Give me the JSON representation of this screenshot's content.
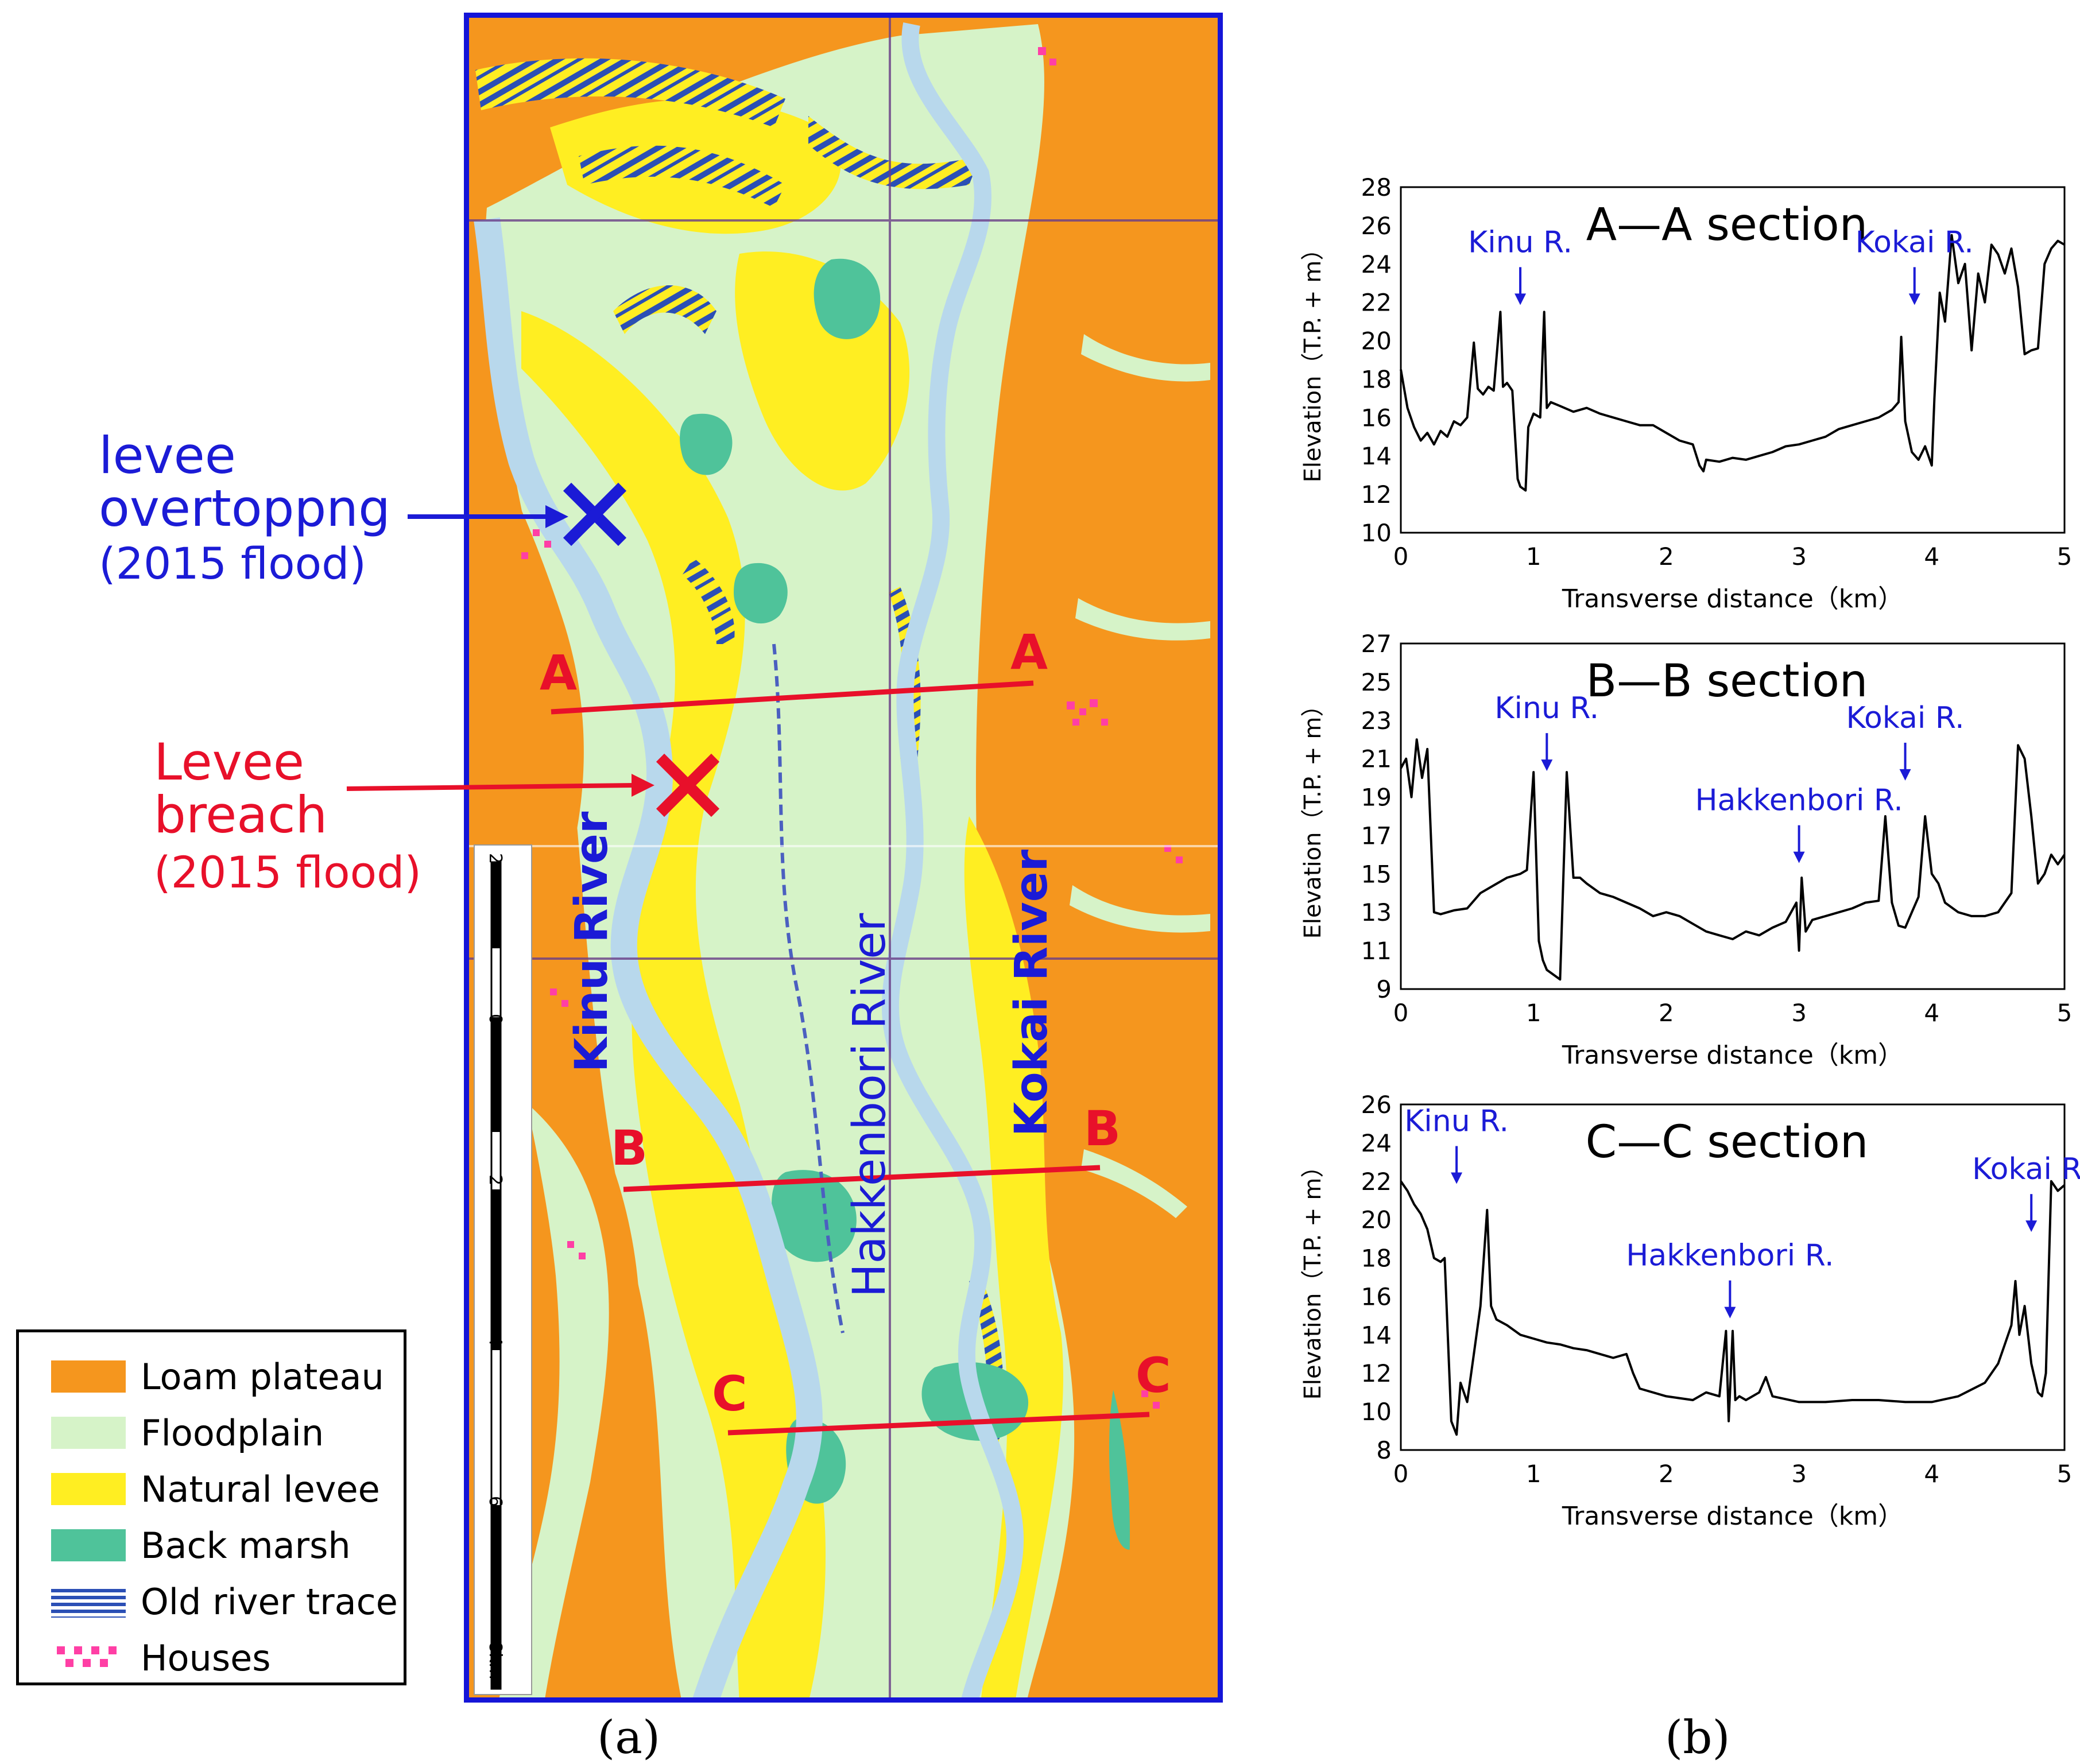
{
  "annotations": {
    "overtopping": [
      "levee",
      "overtoppng",
      "(2015 flood)"
    ],
    "breach": [
      "Levee",
      "breach",
      "(2015 flood)"
    ],
    "overtopping_color": "#1b1bd6",
    "breach_color": "#e8102a"
  },
  "map": {
    "rivers": {
      "kinu": "Kinu River",
      "hakkenbori": "Hakkenbori River",
      "kokai": "Kokai River"
    },
    "sections": {
      "a": "A",
      "b": "B",
      "c": "C"
    },
    "scale_ticks": [
      "2",
      "0",
      "2",
      "4",
      "6",
      "8km"
    ],
    "colors": {
      "loam": "#f5961e",
      "floodplain": "#d6f3c8",
      "levee": "#ffee22",
      "marsh": "#4fc39a",
      "river": "#b8d8ec",
      "houses": "#ff3fa5",
      "frame": "#1515d8"
    }
  },
  "legend": [
    {
      "label": "Loam plateau",
      "swatch": "loam"
    },
    {
      "label": "Floodplain",
      "swatch": "floodplain"
    },
    {
      "label": "Natural levee",
      "swatch": "levee"
    },
    {
      "label": "Back marsh",
      "swatch": "marsh"
    },
    {
      "label": "Old river trace",
      "swatch": "old-river"
    },
    {
      "label": "Houses",
      "swatch": "houses"
    }
  ],
  "panel_labels": {
    "a": "(a)",
    "b": "(b)"
  },
  "chart_data": [
    {
      "type": "line",
      "title": "A—A section",
      "xlabel": "Transverse distance（km）",
      "ylabel": "Elevation（T.P. + m）",
      "xlim": [
        0,
        5
      ],
      "ylim": [
        10,
        28
      ],
      "xticks": [
        0,
        1,
        2,
        3,
        4,
        5
      ],
      "yticks": [
        10,
        12,
        14,
        16,
        18,
        20,
        22,
        24,
        26,
        28
      ],
      "annotations": [
        {
          "text": "Kinu R.",
          "x": 0.9,
          "y": 21.5
        },
        {
          "text": "Kokai R.",
          "x": 3.87,
          "y": 21.5
        }
      ],
      "x": [
        0,
        0.05,
        0.1,
        0.15,
        0.2,
        0.25,
        0.3,
        0.35,
        0.4,
        0.45,
        0.5,
        0.55,
        0.58,
        0.62,
        0.66,
        0.7,
        0.75,
        0.77,
        0.8,
        0.84,
        0.88,
        0.9,
        0.94,
        0.96,
        1.0,
        1.05,
        1.08,
        1.1,
        1.13,
        1.2,
        1.3,
        1.4,
        1.5,
        1.6,
        1.7,
        1.8,
        1.9,
        2.0,
        2.1,
        2.2,
        2.25,
        2.28,
        2.3,
        2.4,
        2.5,
        2.6,
        2.7,
        2.8,
        2.9,
        3.0,
        3.1,
        3.2,
        3.3,
        3.4,
        3.5,
        3.6,
        3.7,
        3.75,
        3.77,
        3.8,
        3.85,
        3.9,
        3.95,
        4.0,
        4.02,
        4.06,
        4.1,
        4.15,
        4.2,
        4.25,
        4.3,
        4.35,
        4.4,
        4.45,
        4.5,
        4.55,
        4.6,
        4.65,
        4.7,
        4.75,
        4.8,
        4.85,
        4.9,
        4.95,
        5.0
      ],
      "y": [
        18.5,
        16.5,
        15.5,
        14.8,
        15.2,
        14.6,
        15.3,
        15.0,
        15.8,
        15.6,
        16.0,
        19.9,
        17.5,
        17.2,
        17.6,
        17.4,
        21.5,
        17.6,
        17.8,
        17.4,
        12.8,
        12.4,
        12.2,
        15.5,
        16.2,
        16.0,
        21.5,
        16.5,
        16.8,
        16.6,
        16.3,
        16.5,
        16.2,
        16.0,
        15.8,
        15.6,
        15.6,
        15.2,
        14.8,
        14.6,
        13.5,
        13.2,
        13.8,
        13.7,
        13.9,
        13.8,
        14.0,
        14.2,
        14.5,
        14.6,
        14.8,
        15.0,
        15.4,
        15.6,
        15.8,
        16.0,
        16.4,
        16.8,
        20.2,
        15.8,
        14.2,
        13.8,
        14.5,
        13.5,
        17.0,
        22.5,
        21.0,
        25.5,
        23.0,
        24.0,
        19.5,
        23.5,
        22.0,
        25.0,
        24.5,
        23.5,
        24.8,
        22.8,
        19.3,
        19.5,
        19.6,
        24.0,
        24.8,
        25.2,
        25.0
      ]
    },
    {
      "type": "line",
      "title": "B—B section",
      "xlabel": "Transverse distance（km）",
      "ylabel": "Elevation（T.P. + m）",
      "xlim": [
        0,
        5
      ],
      "ylim": [
        9,
        27
      ],
      "xticks": [
        0,
        1,
        2,
        3,
        4,
        5
      ],
      "yticks": [
        9,
        11,
        13,
        15,
        17,
        19,
        21,
        23,
        25,
        27
      ],
      "annotations": [
        {
          "text": "Kinu R.",
          "x": 1.1,
          "y": 20.0
        },
        {
          "text": "Hakkenbori R.",
          "x": 3.0,
          "y": 15.2
        },
        {
          "text": "Kokai R.",
          "x": 3.8,
          "y": 19.5
        }
      ],
      "x": [
        0,
        0.04,
        0.08,
        0.12,
        0.16,
        0.2,
        0.25,
        0.3,
        0.4,
        0.5,
        0.6,
        0.7,
        0.8,
        0.9,
        0.95,
        1.0,
        1.04,
        1.07,
        1.1,
        1.2,
        1.25,
        1.3,
        1.35,
        1.4,
        1.5,
        1.6,
        1.7,
        1.8,
        1.9,
        2.0,
        2.1,
        2.2,
        2.3,
        2.4,
        2.5,
        2.6,
        2.7,
        2.8,
        2.9,
        2.98,
        3.0,
        3.02,
        3.05,
        3.1,
        3.2,
        3.3,
        3.4,
        3.5,
        3.6,
        3.65,
        3.7,
        3.75,
        3.8,
        3.85,
        3.9,
        3.95,
        4.0,
        4.05,
        4.1,
        4.2,
        4.3,
        4.4,
        4.5,
        4.6,
        4.65,
        4.7,
        4.75,
        4.8,
        4.85,
        4.9,
        4.95,
        5.0
      ],
      "y": [
        20.5,
        21.0,
        19.0,
        22.0,
        20.0,
        21.5,
        13.0,
        12.9,
        13.1,
        13.2,
        14.0,
        14.4,
        14.8,
        15.0,
        15.2,
        20.3,
        11.5,
        10.5,
        10.0,
        9.5,
        20.3,
        14.8,
        14.8,
        14.5,
        14.0,
        13.8,
        13.5,
        13.2,
        12.8,
        13.0,
        12.8,
        12.4,
        12.0,
        11.8,
        11.6,
        12.0,
        11.8,
        12.2,
        12.5,
        13.5,
        11.0,
        14.8,
        12.0,
        12.6,
        12.8,
        13.0,
        13.2,
        13.5,
        13.6,
        18.0,
        13.5,
        12.3,
        12.2,
        13.0,
        13.8,
        18.0,
        15.0,
        14.5,
        13.5,
        13.0,
        12.8,
        12.8,
        13.0,
        14.0,
        21.7,
        21.0,
        18.0,
        14.5,
        15.0,
        16.0,
        15.5,
        16.0
      ]
    },
    {
      "type": "line",
      "title": "C—C section",
      "xlabel": "Transverse distance（km）",
      "ylabel": "Elevation（T.P. + m）",
      "xlim": [
        0,
        5
      ],
      "ylim": [
        8,
        26
      ],
      "xticks": [
        0,
        1,
        2,
        3,
        4,
        5
      ],
      "yticks": [
        8,
        10,
        12,
        14,
        16,
        18,
        20,
        22,
        24,
        26
      ],
      "annotations": [
        {
          "text": "Kinu R.",
          "x": 0.42,
          "y": 21.5
        },
        {
          "text": "Hakkenbori R.",
          "x": 2.48,
          "y": 14.5
        },
        {
          "text": "Kokai R.",
          "x": 4.75,
          "y": 19.0
        }
      ],
      "x": [
        0,
        0.05,
        0.1,
        0.15,
        0.2,
        0.25,
        0.3,
        0.33,
        0.38,
        0.42,
        0.45,
        0.5,
        0.55,
        0.6,
        0.65,
        0.68,
        0.72,
        0.8,
        0.9,
        1.0,
        1.1,
        1.2,
        1.3,
        1.4,
        1.5,
        1.6,
        1.7,
        1.75,
        1.8,
        2.0,
        2.2,
        2.3,
        2.4,
        2.45,
        2.47,
        2.5,
        2.52,
        2.55,
        2.6,
        2.7,
        2.75,
        2.8,
        3.0,
        3.2,
        3.4,
        3.6,
        3.8,
        4.0,
        4.2,
        4.4,
        4.5,
        4.55,
        4.6,
        4.63,
        4.66,
        4.7,
        4.75,
        4.8,
        4.83,
        4.86,
        4.9,
        4.95,
        5.0
      ],
      "y": [
        22.0,
        21.5,
        20.8,
        20.3,
        19.5,
        18.0,
        17.8,
        18.0,
        9.5,
        8.8,
        11.5,
        10.5,
        13.0,
        15.5,
        20.5,
        15.5,
        14.8,
        14.5,
        14.0,
        13.8,
        13.6,
        13.5,
        13.3,
        13.2,
        13.0,
        12.8,
        13.0,
        12.0,
        11.2,
        10.8,
        10.6,
        11.0,
        10.8,
        14.2,
        9.5,
        14.2,
        10.6,
        10.8,
        10.6,
        11.0,
        11.8,
        10.8,
        10.5,
        10.5,
        10.6,
        10.6,
        10.5,
        10.5,
        10.8,
        11.5,
        12.5,
        13.5,
        14.5,
        16.8,
        14.0,
        15.5,
        12.5,
        11.0,
        10.8,
        12.0,
        22.0,
        21.5,
        21.8
      ]
    }
  ]
}
